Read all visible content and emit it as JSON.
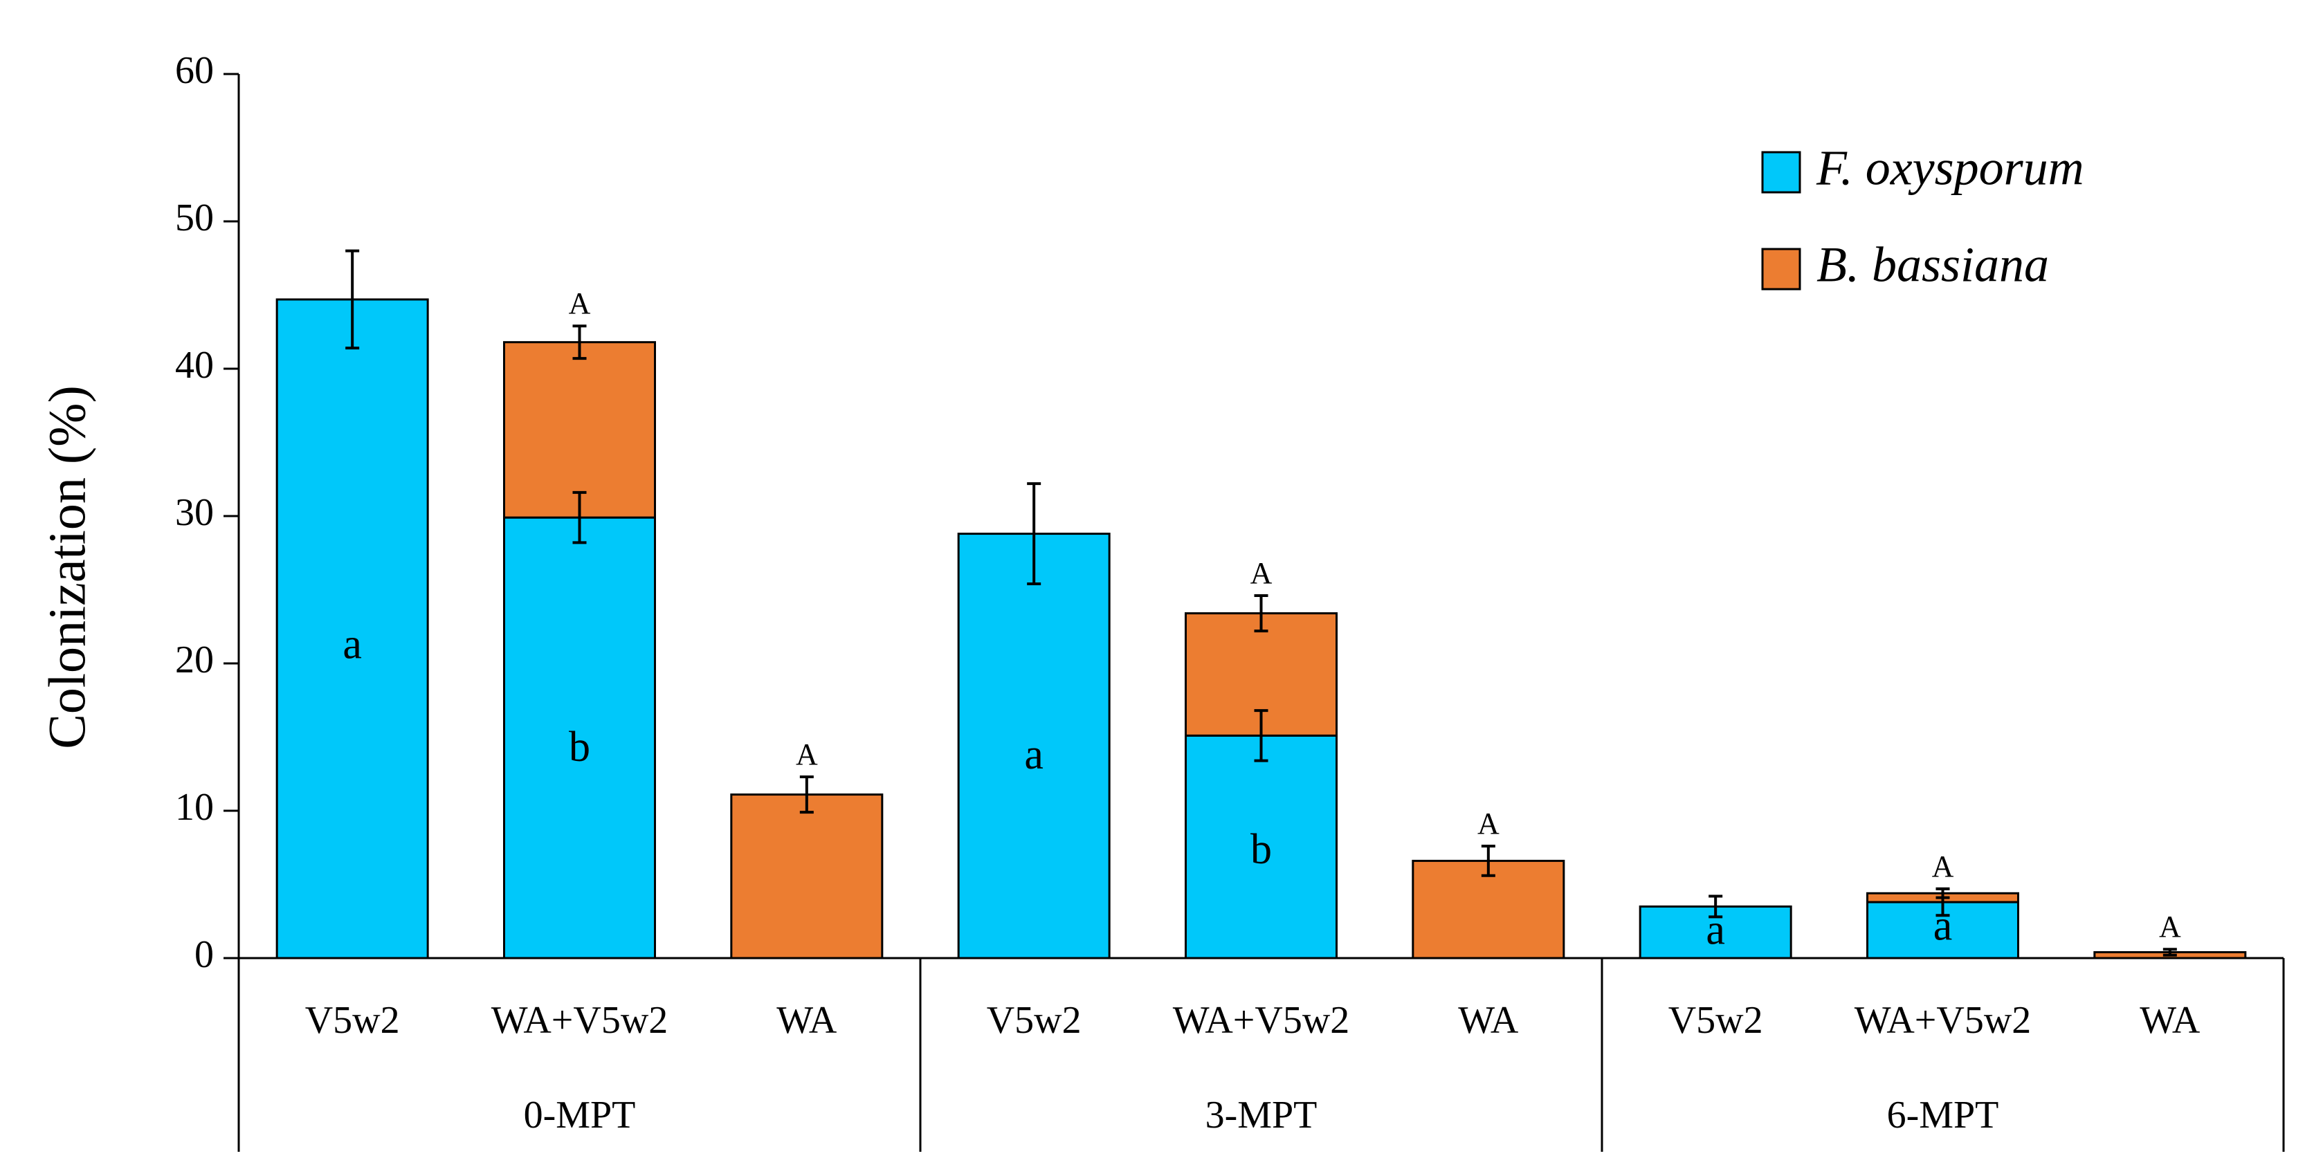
{
  "chart_data": {
    "type": "bar",
    "stacked": true,
    "title": "",
    "xlabel": "",
    "ylabel": "Colonization (%)",
    "ylim": [
      0,
      60
    ],
    "yticks": [
      0,
      10,
      20,
      30,
      40,
      50,
      60
    ],
    "grid": false,
    "legend_position": "top-right",
    "groups": [
      {
        "label": "0-MPT",
        "bars": [
          {
            "label": "V5w2",
            "foxy": 44.7,
            "foxy_err": 3.3,
            "bbas": 0,
            "bbas_err": null,
            "letter_in": "a",
            "letter_top": ""
          },
          {
            "label": "WA+V5w2",
            "foxy": 29.9,
            "foxy_err": 1.7,
            "bbas": 11.9,
            "bbas_err": 1.1,
            "letter_in": "b",
            "letter_top": "A"
          },
          {
            "label": "WA",
            "foxy": 0,
            "foxy_err": null,
            "bbas": 11.1,
            "bbas_err": 1.2,
            "letter_in": "",
            "letter_top": "A"
          }
        ]
      },
      {
        "label": "3-MPT",
        "bars": [
          {
            "label": "V5w2",
            "foxy": 28.8,
            "foxy_err": 3.4,
            "bbas": 0,
            "bbas_err": null,
            "letter_in": "a",
            "letter_top": ""
          },
          {
            "label": "WA+V5w2",
            "foxy": 15.1,
            "foxy_err": 1.7,
            "bbas": 8.3,
            "bbas_err": 1.2,
            "letter_in": "b",
            "letter_top": "A"
          },
          {
            "label": "WA",
            "foxy": 0,
            "foxy_err": null,
            "bbas": 6.6,
            "bbas_err": 1.0,
            "letter_in": "",
            "letter_top": "A"
          }
        ]
      },
      {
        "label": "6-MPT",
        "bars": [
          {
            "label": "V5w2",
            "foxy": 3.5,
            "foxy_err": 0.7,
            "bbas": 0,
            "bbas_err": null,
            "letter_in": "a",
            "letter_top": ""
          },
          {
            "label": "WA+V5w2",
            "foxy": 3.8,
            "foxy_err": 0.9,
            "bbas": 0.6,
            "bbas_err": 0.3,
            "letter_in": "a",
            "letter_top": "A"
          },
          {
            "label": "WA",
            "foxy": 0,
            "foxy_err": null,
            "bbas": 0.4,
            "bbas_err": 0.2,
            "letter_in": "",
            "letter_top": "A"
          }
        ]
      }
    ],
    "series": [
      {
        "key": "foxy",
        "name": "F. oxysporum",
        "color": "#00C8FA"
      },
      {
        "key": "bbas",
        "name": "B. bassiana",
        "color": "#EC7D31"
      }
    ]
  }
}
